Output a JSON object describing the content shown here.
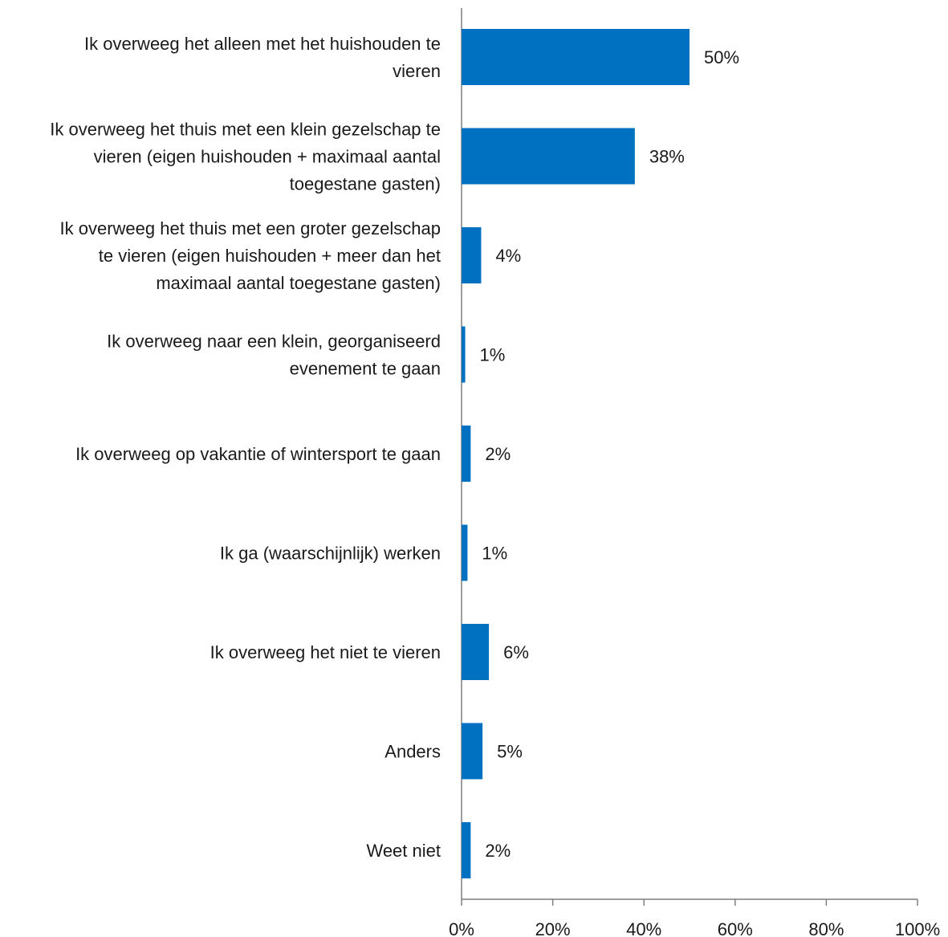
{
  "chart_data": {
    "type": "bar",
    "orientation": "horizontal",
    "title": "",
    "xlabel": "",
    "ylabel": "",
    "categories": [
      [
        "Ik overweeg het alleen met het huishouden te",
        "vieren"
      ],
      [
        "Ik overweeg het thuis met een klein gezelschap te",
        "vieren (eigen huishouden + maximaal aantal",
        "toegestane gasten)"
      ],
      [
        "Ik overweeg het thuis met een groter gezelschap",
        "te vieren (eigen huishouden + meer dan het",
        "maximaal aantal toegestane gasten)"
      ],
      [
        "Ik overweeg naar een klein, georganiseerd",
        "evenement te gaan"
      ],
      [
        "Ik overweeg op vakantie of wintersport te gaan"
      ],
      [
        "Ik ga (waarschijnlijk) werken"
      ],
      [
        "Ik overweeg het niet te vieren"
      ],
      [
        "Anders"
      ],
      [
        "Weet niet"
      ]
    ],
    "values": [
      50,
      38,
      4.3,
      0.8,
      2,
      1.3,
      6,
      4.6,
      2
    ],
    "value_labels": [
      "50%",
      "38%",
      "4%",
      "1%",
      "2%",
      "1%",
      "6%",
      "5%",
      "2%"
    ],
    "xlim": [
      0,
      100
    ],
    "x_ticks": [
      0,
      20,
      40,
      60,
      80,
      100
    ],
    "x_tick_labels": [
      "0%",
      "20%",
      "40%",
      "60%",
      "80%",
      "100%"
    ],
    "bar_color": "#0070c0",
    "grid": false,
    "legend": "none"
  }
}
